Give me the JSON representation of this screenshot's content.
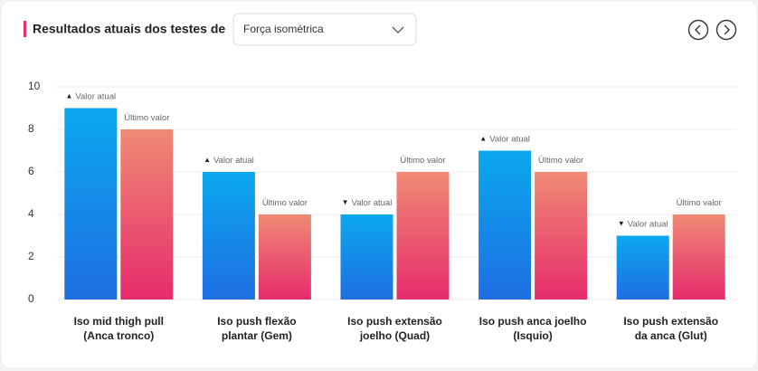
{
  "header": {
    "title": "Resultados atuais dos testes de",
    "dropdown": "Força isométrica"
  },
  "chart_data": {
    "type": "bar",
    "categories": [
      [
        "Iso mid thigh pull",
        "(Anca tronco)"
      ],
      [
        "Iso push flexão",
        "plantar (Gem)"
      ],
      [
        "Iso push extensão",
        "joelho (Quad)"
      ],
      [
        "Iso push anca joelho",
        "(Isquio)"
      ],
      [
        "Iso push extensão",
        "da anca (Glut)"
      ]
    ],
    "series": [
      {
        "name": "Valor atual",
        "gradient": [
          "#0ba8ee",
          "#1e6ee2"
        ],
        "values": [
          9,
          6,
          4,
          7,
          3
        ],
        "markers": [
          "▲",
          "▲",
          "▼",
          "▲",
          "▼"
        ]
      },
      {
        "name": "Último valor",
        "gradient": [
          "#f08a74",
          "#e62c6c"
        ],
        "values": [
          8,
          4,
          6,
          6,
          4
        ]
      }
    ],
    "ylim": [
      0,
      10
    ],
    "yticks": [
      0,
      2,
      4,
      6,
      8,
      10
    ],
    "grid": true
  }
}
